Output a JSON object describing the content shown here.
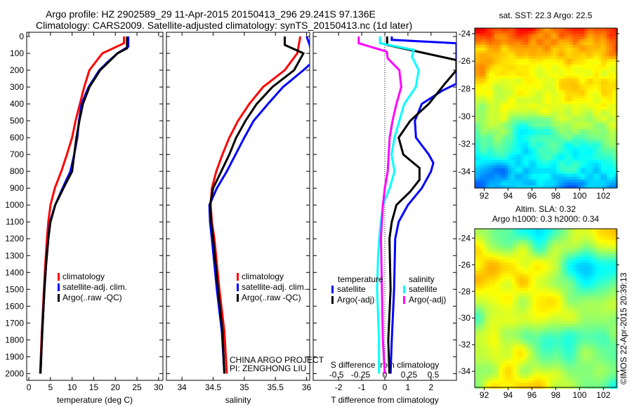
{
  "header": {
    "line1": "Argo profile: HZ 2902589_29 11-Apr-2015 20150413_296 29.241S 97.136E",
    "line2": "Climatology: CARS2009. Satellite-adjusted climatology: synTS_20150413.nc (1d later)"
  },
  "credits": {
    "project": "CHINA ARGO PROJECT",
    "pi": "PI: ZENGHONG LIU",
    "stamp": "©IMOS 22-Apr-2015 20:39:13"
  },
  "colors": {
    "climatology": "#ff0000",
    "satellite": "#0000ff",
    "argo": "#000000",
    "sal_sat": "#00ffff",
    "sal_argo": "#ff00ff"
  },
  "chart_data": [
    {
      "type": "line",
      "id": "temp",
      "xlabel": "temperature (deg C)",
      "ylabel": "",
      "xlim": [
        -0.5,
        31
      ],
      "ylim": [
        2040,
        0
      ],
      "xticks": [
        0,
        5,
        10,
        15,
        20,
        25,
        30
      ],
      "yticks": [
        0,
        100,
        200,
        300,
        400,
        500,
        600,
        700,
        800,
        900,
        1000,
        1100,
        1200,
        1300,
        1400,
        1500,
        1600,
        1700,
        1800,
        1900,
        2000
      ],
      "legend": [
        "climatology",
        "satellite-adj. clim.",
        "Argo(..raw -QC)"
      ],
      "series": [
        {
          "name": "climatology",
          "color": "#ff0000",
          "points": [
            [
              22,
              0
            ],
            [
              22,
              40
            ],
            [
              19.5,
              70
            ],
            [
              17,
              100
            ],
            [
              15.5,
              150
            ],
            [
              14,
              200
            ],
            [
              12.8,
              300
            ],
            [
              11.8,
              400
            ],
            [
              10.8,
              500
            ],
            [
              10,
              600
            ],
            [
              8.8,
              700
            ],
            [
              7.5,
              800
            ],
            [
              6,
              900
            ],
            [
              5,
              1000
            ],
            [
              4.5,
              1100
            ],
            [
              4.2,
              1200
            ],
            [
              3.8,
              1350
            ],
            [
              3.5,
              1500
            ],
            [
              3,
              1750
            ],
            [
              2.6,
              2000
            ]
          ]
        },
        {
          "name": "satellite-adj. clim.",
          "color": "#0000ff",
          "points": [
            [
              23,
              0
            ],
            [
              23,
              60
            ],
            [
              20.5,
              100
            ],
            [
              18.3,
              150
            ],
            [
              16.3,
              200
            ],
            [
              13.8,
              300
            ],
            [
              12.2,
              400
            ],
            [
              11.6,
              500
            ],
            [
              11.2,
              600
            ],
            [
              10.5,
              700
            ],
            [
              9.6,
              800
            ],
            [
              7.8,
              900
            ],
            [
              6.1,
              1000
            ],
            [
              4.9,
              1100
            ],
            [
              4.5,
              1200
            ],
            [
              4,
              1350
            ],
            [
              3.6,
              1500
            ],
            [
              3.1,
              1750
            ],
            [
              2.7,
              2000
            ]
          ]
        },
        {
          "name": "Argo(..raw -QC)",
          "color": "#000000",
          "points": [
            [
              22.7,
              0
            ],
            [
              22.7,
              70
            ],
            [
              20.5,
              100
            ],
            [
              18.5,
              150
            ],
            [
              16.5,
              200
            ],
            [
              14,
              300
            ],
            [
              12.5,
              400
            ],
            [
              11.7,
              500
            ],
            [
              11,
              600
            ],
            [
              10.5,
              700
            ],
            [
              10,
              800
            ],
            [
              8,
              900
            ],
            [
              6.1,
              1000
            ],
            [
              5,
              1100
            ],
            [
              4.5,
              1200
            ],
            [
              4,
              1350
            ],
            [
              3.6,
              1500
            ],
            [
              3.1,
              1750
            ],
            [
              2.7,
              2000
            ]
          ]
        }
      ]
    },
    {
      "type": "line",
      "id": "sal",
      "xlabel": "salinity",
      "xlim": [
        33.75,
        36.05
      ],
      "ylim": [
        2040,
        0
      ],
      "xticks": [
        34,
        34.5,
        35,
        35.5,
        36
      ],
      "legend": [
        "climatology",
        "satellite-adj. clim.",
        "Argo(..raw -QC)"
      ],
      "series": [
        {
          "name": "climatology",
          "color": "#ff0000",
          "points": [
            [
              35.9,
              0
            ],
            [
              35.85,
              100
            ],
            [
              35.65,
              200
            ],
            [
              35.3,
              300
            ],
            [
              35.08,
              400
            ],
            [
              34.9,
              500
            ],
            [
              34.76,
              600
            ],
            [
              34.65,
              700
            ],
            [
              34.55,
              800
            ],
            [
              34.48,
              900
            ],
            [
              34.46,
              1000
            ],
            [
              34.48,
              1100
            ],
            [
              34.52,
              1200
            ],
            [
              34.6,
              1500
            ],
            [
              34.68,
              1750
            ],
            [
              34.72,
              2000
            ]
          ]
        },
        {
          "name": "satellite-adj. clim.",
          "color": "#0000ff",
          "points": [
            [
              36,
              0
            ],
            [
              36.05,
              50
            ],
            [
              36.1,
              150
            ],
            [
              35.95,
              200
            ],
            [
              35.62,
              300
            ],
            [
              35.38,
              400
            ],
            [
              35.15,
              500
            ],
            [
              35,
              600
            ],
            [
              34.86,
              700
            ],
            [
              34.72,
              800
            ],
            [
              34.56,
              900
            ],
            [
              34.44,
              1000
            ],
            [
              34.45,
              1100
            ],
            [
              34.48,
              1200
            ],
            [
              34.56,
              1500
            ],
            [
              34.64,
              1750
            ],
            [
              34.68,
              2000
            ]
          ]
        },
        {
          "name": "Argo(..raw -QC)",
          "color": "#000000",
          "points": [
            [
              35.65,
              0
            ],
            [
              35.65,
              50
            ],
            [
              35.95,
              100
            ],
            [
              35.8,
              200
            ],
            [
              35.45,
              300
            ],
            [
              35.2,
              400
            ],
            [
              35.02,
              500
            ],
            [
              34.87,
              600
            ],
            [
              34.76,
              700
            ],
            [
              34.63,
              800
            ],
            [
              34.5,
              900
            ],
            [
              34.45,
              1000
            ],
            [
              34.47,
              1100
            ],
            [
              34.5,
              1200
            ],
            [
              34.58,
              1500
            ],
            [
              34.65,
              1750
            ],
            [
              34.68,
              2000
            ]
          ]
        }
      ]
    },
    {
      "type": "line",
      "id": "diff",
      "xlabel": "T difference from climatology",
      "x2label": "S difference from climatology",
      "xlim": [
        -3.1,
        3.1
      ],
      "x2lim": [
        -0.74,
        0.74
      ],
      "ylim": [
        2040,
        0
      ],
      "xticks": [
        -2,
        -1,
        0,
        1,
        2
      ],
      "x2ticks": [
        "-0.5",
        "-0.25",
        "0",
        "0.25",
        "0.5"
      ],
      "legend_title_t": "temperature",
      "legend_title_s": "salinity",
      "legend": [
        "satellite",
        "Argo(-adj)",
        "satellite",
        "Argo(-adj)"
      ],
      "series": [
        {
          "name": "satellite",
          "var": "T",
          "color": "#0000ff",
          "points": [
            [
              0.3,
              0
            ],
            [
              0.3,
              20
            ],
            [
              3.1,
              40
            ],
            [
              3.1,
              280
            ],
            [
              2.5,
              320
            ],
            [
              1.6,
              400
            ],
            [
              1.3,
              500
            ],
            [
              1.35,
              600
            ],
            [
              1.9,
              700
            ],
            [
              2.1,
              750
            ],
            [
              2,
              800
            ],
            [
              1.6,
              900
            ],
            [
              1,
              1000
            ],
            [
              0.6,
              1100
            ],
            [
              0.45,
              1200
            ],
            [
              0.4,
              1500
            ],
            [
              0.3,
              1800
            ],
            [
              0.25,
              2000
            ]
          ]
        },
        {
          "name": "Argo(-adj)",
          "var": "T",
          "color": "#000000",
          "points": [
            [
              0.1,
              0
            ],
            [
              0.1,
              50
            ],
            [
              3.1,
              140
            ],
            [
              3.1,
              200
            ],
            [
              2.6,
              280
            ],
            [
              1.9,
              400
            ],
            [
              1.1,
              500
            ],
            [
              0.6,
              600
            ],
            [
              0.8,
              700
            ],
            [
              1.5,
              780
            ],
            [
              1.5,
              850
            ],
            [
              1.1,
              920
            ],
            [
              0.5,
              1000
            ],
            [
              0.3,
              1100
            ],
            [
              0.2,
              1200
            ],
            [
              0.25,
              1500
            ],
            [
              0.15,
              1800
            ],
            [
              0.2,
              2000
            ]
          ]
        },
        {
          "name": "satellite",
          "var": "S",
          "color": "#00ffff",
          "points": [
            [
              -0.05,
              0
            ],
            [
              -0.05,
              40
            ],
            [
              0.3,
              80
            ],
            [
              0.28,
              120
            ],
            [
              0.35,
              200
            ],
            [
              0.32,
              300
            ],
            [
              0.2,
              400
            ],
            [
              0.15,
              500
            ],
            [
              0.1,
              600
            ],
            [
              0.07,
              700
            ],
            [
              0.1,
              800
            ],
            [
              0.05,
              900
            ],
            [
              -0.02,
              1000
            ],
            [
              -0.05,
              1150
            ],
            [
              -0.07,
              1300
            ],
            [
              -0.08,
              1500
            ],
            [
              -0.06,
              1800
            ],
            [
              -0.06,
              2000
            ]
          ]
        },
        {
          "name": "Argo(-adj)",
          "var": "S",
          "color": "#ff00ff",
          "points": [
            [
              -0.27,
              0
            ],
            [
              -0.27,
              40
            ],
            [
              0.02,
              90
            ],
            [
              0.03,
              130
            ],
            [
              0.15,
              200
            ],
            [
              0.17,
              300
            ],
            [
              0.12,
              400
            ],
            [
              0.08,
              500
            ],
            [
              0.05,
              600
            ],
            [
              0.03,
              800
            ],
            [
              0,
              900
            ],
            [
              -0.02,
              1000
            ],
            [
              -0.04,
              1200
            ],
            [
              -0.03,
              1500
            ],
            [
              -0.02,
              1800
            ],
            [
              0,
              2000
            ]
          ]
        }
      ]
    },
    {
      "type": "heatmap",
      "id": "sst",
      "title": "sat. SST: 22.3 Argo: 22.5",
      "xlim": [
        91.2,
        103.1
      ],
      "ylim": [
        -35.2,
        -23.6
      ],
      "xticks": [
        92,
        94,
        96,
        98,
        100,
        102
      ],
      "yticks": [
        -24,
        -26,
        -28,
        -30,
        -32,
        -34
      ]
    },
    {
      "type": "heatmap",
      "id": "sla",
      "title": "Altim. SLA: 0.32",
      "subtitle": "Argo h1000: 0.3 h2000: 0.34",
      "xlim": [
        91.2,
        103.1
      ],
      "ylim": [
        -35.2,
        -23.3
      ],
      "xticks": [
        92,
        94,
        96,
        98,
        100,
        102
      ],
      "yticks": [
        -24,
        -26,
        -28,
        -30,
        -32,
        -34
      ]
    }
  ]
}
